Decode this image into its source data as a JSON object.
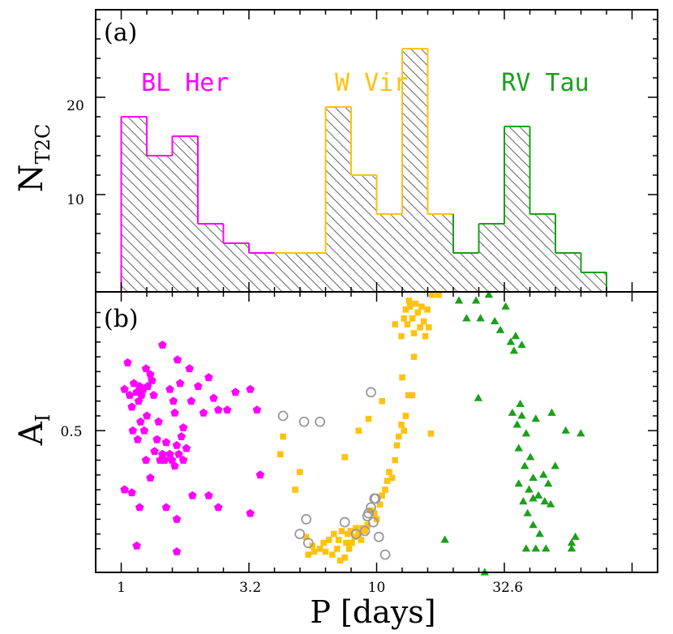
{
  "chart_data": [
    {
      "type": "bar",
      "panel_label": "(a)",
      "ylabel_main": "N",
      "ylabel_sub": "T2C",
      "yticks": [
        "10",
        "20"
      ],
      "ylim": [
        0,
        29
      ],
      "group_labels": [
        {
          "text": "BL Her",
          "color": "#ff00ff",
          "logP": 0.25
        },
        {
          "text": "W Vir",
          "color": "#ffc20e",
          "logP": 0.98
        },
        {
          "text": "RV Tau",
          "color": "#1aa01a",
          "logP": 1.66
        }
      ],
      "bin_edges_logP": [
        0.0,
        0.1,
        0.2,
        0.3,
        0.4,
        0.5,
        0.6,
        0.7,
        0.8,
        0.9,
        1.0,
        1.1,
        1.2,
        1.3,
        1.4,
        1.5,
        1.6,
        1.7,
        1.8,
        1.9,
        2.0
      ],
      "counts": [
        18,
        14,
        16,
        7,
        5,
        4,
        4,
        4,
        19,
        12,
        8,
        25,
        8,
        4,
        7,
        17,
        8,
        4,
        2,
        0
      ],
      "colors": [
        "#ff00ff",
        "#ffc20e",
        "#1aa01a"
      ],
      "color_index": [
        0,
        0,
        0,
        0,
        0,
        0,
        1,
        1,
        1,
        1,
        1,
        1,
        1,
        2,
        2,
        2,
        2,
        2,
        2,
        2
      ]
    },
    {
      "type": "scatter",
      "panel_label": "(b)",
      "ylabel_main": "A",
      "ylabel_sub": "I",
      "ytick": "0.5",
      "ylim": [
        0.02,
        0.97
      ],
      "xlabel": "P [days]",
      "xticks": [
        {
          "label": "1",
          "P": 1
        },
        {
          "label": "3.2",
          "P": 3.2
        },
        {
          "label": "10",
          "P": 10
        },
        {
          "label": "32.6",
          "P": 32.6
        }
      ],
      "xlim_logP": [
        -0.1,
        2.1
      ],
      "series": [
        {
          "name": "BL Her",
          "marker": "pentagon",
          "color": "#ff00ff",
          "points": [
            [
              1.06,
              0.73
            ],
            [
              1.03,
              0.64
            ],
            [
              1.08,
              0.62
            ],
            [
              1.1,
              0.58
            ],
            [
              1.12,
              0.66
            ],
            [
              1.15,
              0.63
            ],
            [
              1.17,
              0.6
            ],
            [
              1.18,
              0.65
            ],
            [
              1.2,
              0.62
            ],
            [
              1.22,
              0.64
            ],
            [
              1.25,
              0.71
            ],
            [
              1.27,
              0.65
            ],
            [
              1.3,
              0.69
            ],
            [
              1.32,
              0.67
            ],
            [
              1.34,
              0.62
            ],
            [
              1.11,
              0.5
            ],
            [
              1.16,
              0.47
            ],
            [
              1.19,
              0.53
            ],
            [
              1.23,
              0.5
            ],
            [
              1.26,
              0.55
            ],
            [
              1.35,
              0.43
            ],
            [
              1.38,
              0.47
            ],
            [
              1.42,
              0.4
            ],
            [
              1.45,
              0.42
            ],
            [
              1.48,
              0.4
            ],
            [
              1.5,
              0.46
            ],
            [
              1.55,
              0.42
            ],
            [
              1.58,
              0.4
            ],
            [
              1.62,
              0.38
            ],
            [
              1.65,
              0.45
            ],
            [
              1.68,
              0.42
            ],
            [
              1.72,
              0.48
            ],
            [
              1.75,
              0.4
            ],
            [
              1.8,
              0.44
            ],
            [
              1.45,
              0.79
            ],
            [
              1.55,
              0.64
            ],
            [
              1.6,
              0.6
            ],
            [
              1.62,
              0.56
            ],
            [
              1.66,
              0.74
            ],
            [
              1.7,
              0.66
            ],
            [
              1.75,
              0.51
            ],
            [
              1.85,
              0.71
            ],
            [
              1.88,
              0.6
            ],
            [
              2.0,
              0.65
            ],
            [
              2.1,
              0.56
            ],
            [
              2.2,
              0.68
            ],
            [
              2.3,
              0.61
            ],
            [
              2.4,
              0.57
            ],
            [
              2.6,
              0.57
            ],
            [
              2.8,
              0.63
            ],
            [
              3.2,
              0.64
            ],
            [
              3.4,
              0.57
            ],
            [
              3.5,
              0.35
            ],
            [
              3.2,
              0.22
            ],
            [
              1.1,
              0.29
            ],
            [
              1.18,
              0.24
            ],
            [
              1.3,
              0.34
            ],
            [
              1.5,
              0.24
            ],
            [
              1.65,
              0.2
            ],
            [
              1.9,
              0.28
            ],
            [
              2.2,
              0.28
            ],
            [
              2.4,
              0.24
            ],
            [
              1.15,
              0.11
            ],
            [
              1.65,
              0.09
            ],
            [
              1.03,
              0.3
            ],
            [
              1.25,
              0.4
            ],
            [
              1.4,
              0.53
            ]
          ]
        },
        {
          "name": "W Vir",
          "marker": "square",
          "color": "#ffc20e",
          "points": [
            [
              4.2,
              0.42
            ],
            [
              4.3,
              0.48
            ],
            [
              4.8,
              0.3
            ],
            [
              5.0,
              0.36
            ],
            [
              5.3,
              0.14
            ],
            [
              5.4,
              0.08
            ],
            [
              5.6,
              0.11
            ],
            [
              5.7,
              0.09
            ],
            [
              6.0,
              0.1
            ],
            [
              6.2,
              0.12
            ],
            [
              6.3,
              0.09
            ],
            [
              6.5,
              0.13
            ],
            [
              6.7,
              0.08
            ],
            [
              6.8,
              0.15
            ],
            [
              7.0,
              0.1
            ],
            [
              7.1,
              0.13
            ],
            [
              7.2,
              0.06
            ],
            [
              7.3,
              0.16
            ],
            [
              7.5,
              0.07
            ],
            [
              7.6,
              0.12
            ],
            [
              7.7,
              0.15
            ],
            [
              7.8,
              0.1
            ],
            [
              7.9,
              0.16
            ],
            [
              8.0,
              0.12
            ],
            [
              8.2,
              0.14
            ],
            [
              8.3,
              0.17
            ],
            [
              8.5,
              0.15
            ],
            [
              8.7,
              0.13
            ],
            [
              8.8,
              0.17
            ],
            [
              9.0,
              0.16
            ],
            [
              9.2,
              0.18
            ],
            [
              9.5,
              0.23
            ],
            [
              9.8,
              0.22
            ],
            [
              10.0,
              0.2
            ],
            [
              10.3,
              0.25
            ],
            [
              10.5,
              0.28
            ],
            [
              10.8,
              0.3
            ],
            [
              11.0,
              0.33
            ],
            [
              11.2,
              0.36
            ],
            [
              11.5,
              0.34
            ],
            [
              11.8,
              0.4
            ],
            [
              12.0,
              0.45
            ],
            [
              12.2,
              0.48
            ],
            [
              12.5,
              0.52
            ],
            [
              12.8,
              0.5
            ],
            [
              13.0,
              0.55
            ],
            [
              13.3,
              0.62
            ],
            [
              13.8,
              0.62
            ],
            [
              14.0,
              0.75
            ],
            [
              11.8,
              0.86
            ],
            [
              12.5,
              0.82
            ],
            [
              12.8,
              0.88
            ],
            [
              13.0,
              0.91
            ],
            [
              13.2,
              0.86
            ],
            [
              13.5,
              0.92
            ],
            [
              13.8,
              0.88
            ],
            [
              14.0,
              0.83
            ],
            [
              14.5,
              0.9
            ],
            [
              15.0,
              0.92
            ],
            [
              15.3,
              0.87
            ],
            [
              15.8,
              0.91
            ],
            [
              16.0,
              0.85
            ],
            [
              16.5,
              0.96
            ],
            [
              15.5,
              0.82
            ],
            [
              13.4,
              0.94
            ],
            [
              14.8,
              0.85
            ],
            [
              10.5,
              0.6
            ],
            [
              8.5,
              0.5
            ],
            [
              12.6,
              0.68
            ],
            [
              14.2,
              0.93
            ],
            [
              17.5,
              0.96
            ],
            [
              16.3,
              0.49
            ],
            [
              9.3,
              0.54
            ],
            [
              7.5,
              0.41
            ]
          ]
        },
        {
          "name": "RV Tau",
          "marker": "triangle",
          "color": "#1aa01a",
          "points": [
            [
              21.0,
              0.94
            ],
            [
              22.5,
              0.88
            ],
            [
              24.5,
              0.94
            ],
            [
              25.5,
              0.88
            ],
            [
              27.5,
              0.96
            ],
            [
              29.0,
              0.87
            ],
            [
              30.5,
              0.84
            ],
            [
              32.0,
              0.92
            ],
            [
              33.5,
              0.8
            ],
            [
              34.5,
              0.77
            ],
            [
              35.0,
              0.82
            ],
            [
              37.0,
              0.79
            ],
            [
              25.0,
              0.61
            ],
            [
              18.5,
              0.13
            ],
            [
              26.5,
              0.02
            ],
            [
              34.0,
              0.56
            ],
            [
              35.5,
              0.52
            ],
            [
              37.0,
              0.55
            ],
            [
              38.5,
              0.49
            ],
            [
              40.0,
              0.41
            ],
            [
              42.0,
              0.54
            ],
            [
              36.0,
              0.44
            ],
            [
              38.0,
              0.38
            ],
            [
              39.5,
              0.3
            ],
            [
              41.0,
              0.34
            ],
            [
              43.0,
              0.28
            ],
            [
              45.0,
              0.35
            ],
            [
              47.0,
              0.32
            ],
            [
              48.5,
              0.56
            ],
            [
              36.0,
              0.32
            ],
            [
              37.5,
              0.26
            ],
            [
              39.0,
              0.22
            ],
            [
              41.0,
              0.18
            ],
            [
              43.5,
              0.15
            ],
            [
              45.5,
              0.26
            ],
            [
              48.0,
              0.25
            ],
            [
              50.0,
              0.38
            ],
            [
              55.0,
              0.5
            ],
            [
              58.0,
              0.12
            ],
            [
              60.0,
              0.14
            ],
            [
              63.0,
              0.49
            ],
            [
              42.0,
              0.1
            ],
            [
              46.0,
              0.1
            ],
            [
              38.5,
              0.1
            ],
            [
              58.0,
              0.1
            ],
            [
              41.0,
              0.27
            ],
            [
              36.5,
              0.59
            ]
          ]
        },
        {
          "name": "Other",
          "marker": "open-circle",
          "color": "#999999",
          "points": [
            [
              4.3,
              0.55
            ],
            [
              5.2,
              0.53
            ],
            [
              6.0,
              0.53
            ],
            [
              9.5,
              0.63
            ],
            [
              5.3,
              0.2
            ],
            [
              5.0,
              0.15
            ],
            [
              5.4,
              0.12
            ],
            [
              7.5,
              0.19
            ],
            [
              8.3,
              0.15
            ],
            [
              9.2,
              0.21
            ],
            [
              9.5,
              0.24
            ],
            [
              9.8,
              0.27
            ],
            [
              9.9,
              0.27
            ],
            [
              9.7,
              0.19
            ],
            [
              10.2,
              0.14
            ],
            [
              10.8,
              0.08
            ],
            [
              9.0,
              0.16
            ],
            [
              9.3,
              0.22
            ]
          ]
        }
      ]
    }
  ]
}
